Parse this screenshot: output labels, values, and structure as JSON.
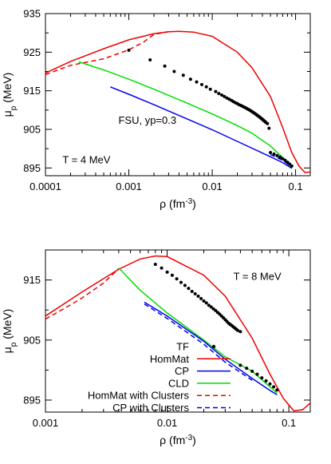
{
  "chart_data": [
    {
      "type": "line",
      "xscale": "log",
      "xlim": [
        0.0001,
        0.15
      ],
      "ylim": [
        893,
        935
      ],
      "xlabel_base": "ρ (fm",
      "xlabel_sup": "-3",
      "xlabel_end": ")",
      "ylabel_base": "μ",
      "ylabel_sub": "p",
      "ylabel_end": " (MeV)",
      "xticks": [
        {
          "v": 0.0001,
          "label": "0.0001"
        },
        {
          "v": 0.001,
          "label": "0.001"
        },
        {
          "v": 0.01,
          "label": "0.01"
        },
        {
          "v": 0.1,
          "label": "0.1"
        }
      ],
      "yticks": [
        {
          "v": 895,
          "label": "895"
        },
        {
          "v": 905,
          "label": "905"
        },
        {
          "v": 915,
          "label": "915"
        },
        {
          "v": 925,
          "label": "925"
        },
        {
          "v": 935,
          "label": "935"
        }
      ],
      "annotations": [
        {
          "text": "FSU, yp=0.3",
          "x": 0.00075,
          "y": 906.5
        },
        {
          "text": "T = 4 MeV",
          "x": 0.00016,
          "y": 896.2
        }
      ],
      "series": [
        {
          "name": "HomMat",
          "color": "#ee0000",
          "dash": "",
          "width": 1.5,
          "points": [
            [
              0.0001,
              919.6
            ],
            [
              0.0002,
              922.6
            ],
            [
              0.0005,
              925.9
            ],
            [
              0.001,
              928.2
            ],
            [
              0.002,
              929.8
            ],
            [
              0.003,
              930.3
            ],
            [
              0.004,
              930.4
            ],
            [
              0.006,
              930.2
            ],
            [
              0.01,
              929.1
            ],
            [
              0.02,
              925.0
            ],
            [
              0.03,
              921.0
            ],
            [
              0.05,
              913.5
            ],
            [
              0.07,
              905.5
            ],
            [
              0.09,
              899.0
            ],
            [
              0.11,
              895.5
            ],
            [
              0.13,
              893.8
            ],
            [
              0.15,
              894.0
            ]
          ]
        },
        {
          "name": "HomMat with Clusters",
          "color": "#ee0000",
          "dash": "6,4",
          "width": 1.5,
          "points": [
            [
              0.0001,
              919.2
            ],
            [
              0.0002,
              921.6
            ],
            [
              0.0005,
              923.3
            ],
            [
              0.001,
              925.6
            ],
            [
              0.0015,
              927.6
            ],
            [
              0.002,
              929.6
            ],
            [
              0.003,
              930.3
            ]
          ]
        },
        {
          "name": "CLD",
          "color": "#00dd00",
          "dash": "",
          "width": 1.5,
          "points": [
            [
              0.00025,
              922.5
            ],
            [
              0.0005,
              920.4
            ],
            [
              0.001,
              918.0
            ],
            [
              0.002,
              915.4
            ],
            [
              0.005,
              911.8
            ],
            [
              0.01,
              909.0
            ],
            [
              0.02,
              906.0
            ],
            [
              0.03,
              904.0
            ],
            [
              0.05,
              900.7
            ],
            [
              0.07,
              897.7
            ],
            [
              0.09,
              895.0
            ]
          ]
        },
        {
          "name": "CP",
          "color": "#0000ee",
          "dash": "",
          "width": 1.5,
          "points": [
            [
              0.0006,
              916.0
            ],
            [
              0.001,
              914.1
            ],
            [
              0.002,
              911.4
            ],
            [
              0.005,
              907.7
            ],
            [
              0.01,
              904.9
            ],
            [
              0.02,
              901.9
            ],
            [
              0.05,
              897.9
            ],
            [
              0.07,
              896.4
            ],
            [
              0.09,
              894.9
            ]
          ]
        },
        {
          "name": "CP with Clusters",
          "color": "#0000ee",
          "dash": "6,4",
          "width": 1.5,
          "points": [
            [
              0.05,
              898.5
            ],
            [
              0.07,
              897.0
            ],
            [
              0.09,
              895.2
            ]
          ]
        }
      ],
      "tf": [
        [
          0.001,
          925.5
        ],
        [
          0.0018,
          923.0
        ],
        [
          0.0027,
          921.4
        ],
        [
          0.0035,
          920.0
        ],
        [
          0.0045,
          919.0
        ],
        [
          0.0055,
          918.0
        ],
        [
          0.0065,
          917.3
        ],
        [
          0.0075,
          916.6
        ],
        [
          0.0085,
          916.0
        ],
        [
          0.0095,
          915.4
        ],
        [
          0.011,
          914.8
        ],
        [
          0.012,
          914.3
        ],
        [
          0.013,
          913.9
        ],
        [
          0.014,
          913.5
        ],
        [
          0.015,
          913.1
        ],
        [
          0.016,
          912.8
        ],
        [
          0.017,
          912.5
        ],
        [
          0.018,
          912.2
        ],
        [
          0.019,
          911.9
        ],
        [
          0.02,
          911.7
        ],
        [
          0.021,
          911.4
        ],
        [
          0.022,
          911.2
        ],
        [
          0.023,
          911.0
        ],
        [
          0.024,
          910.8
        ],
        [
          0.025,
          910.6
        ],
        [
          0.026,
          910.4
        ],
        [
          0.027,
          910.2
        ],
        [
          0.028,
          910.0
        ],
        [
          0.029,
          909.8
        ],
        [
          0.03,
          909.6
        ],
        [
          0.031,
          909.4
        ],
        [
          0.032,
          909.2
        ],
        [
          0.033,
          909.0
        ],
        [
          0.034,
          908.8
        ],
        [
          0.035,
          908.6
        ],
        [
          0.036,
          908.4
        ],
        [
          0.037,
          908.2
        ],
        [
          0.038,
          908.0
        ],
        [
          0.039,
          907.8
        ],
        [
          0.04,
          907.6
        ],
        [
          0.041,
          907.4
        ],
        [
          0.042,
          907.2
        ],
        [
          0.043,
          907.0
        ],
        [
          0.044,
          906.8
        ],
        [
          0.046,
          906.5
        ],
        [
          0.048,
          905.3
        ],
        [
          0.05,
          899.0
        ],
        [
          0.055,
          898.6
        ],
        [
          0.06,
          898.2
        ],
        [
          0.065,
          897.8
        ],
        [
          0.07,
          897.4
        ],
        [
          0.075,
          897.0
        ],
        [
          0.08,
          896.5
        ],
        [
          0.085,
          896.0
        ],
        [
          0.09,
          895.5
        ]
      ]
    },
    {
      "type": "line",
      "xscale": "log",
      "xlim": [
        0.001,
        0.15
      ],
      "ylim": [
        893,
        920
      ],
      "xlabel_base": "ρ (fm",
      "xlabel_sup": "-3",
      "xlabel_end": ")",
      "ylabel_base": "μ",
      "ylabel_sub": "p",
      "ylabel_end": " (MeV)",
      "xticks": [
        {
          "v": 0.001,
          "label": "0.001"
        },
        {
          "v": 0.01,
          "label": "0.01"
        },
        {
          "v": 0.1,
          "label": "0.1"
        }
      ],
      "yticks": [
        {
          "v": 895,
          "label": "895"
        },
        {
          "v": 905,
          "label": "905"
        },
        {
          "v": 915,
          "label": "915"
        }
      ],
      "annotations": [
        {
          "text": "T = 8 MeV",
          "x": 0.035,
          "y": 915
        }
      ],
      "series": [
        {
          "name": "HomMat",
          "color": "#ee0000",
          "dash": "",
          "width": 1.5,
          "points": [
            [
              0.001,
              909.0
            ],
            [
              0.002,
              913.0
            ],
            [
              0.004,
              916.8
            ],
            [
              0.006,
              918.5
            ],
            [
              0.008,
              919.0
            ],
            [
              0.01,
              918.9
            ],
            [
              0.02,
              915.8
            ],
            [
              0.03,
              912.3
            ],
            [
              0.05,
              905.3
            ],
            [
              0.07,
              899.3
            ],
            [
              0.09,
              895.3
            ],
            [
              0.11,
              893.2
            ],
            [
              0.13,
              893.4
            ],
            [
              0.15,
              894.5
            ]
          ]
        },
        {
          "name": "HomMat with Clusters",
          "color": "#ee0000",
          "dash": "6,4",
          "width": 1.5,
          "points": [
            [
              0.001,
              908.5
            ],
            [
              0.0015,
              910.5
            ],
            [
              0.002,
              912.0
            ],
            [
              0.003,
              914.5
            ],
            [
              0.004,
              916.9
            ]
          ]
        },
        {
          "name": "CLD",
          "color": "#00dd00",
          "dash": "",
          "width": 1.5,
          "points": [
            [
              0.004,
              917.0
            ],
            [
              0.006,
              913.3
            ],
            [
              0.01,
              909.5
            ],
            [
              0.02,
              905.0
            ],
            [
              0.03,
              902.2
            ],
            [
              0.05,
              899.8
            ],
            [
              0.07,
              897.2
            ],
            [
              0.08,
              896.2
            ]
          ]
        },
        {
          "name": "CP",
          "color": "#0000ee",
          "dash": "",
          "width": 1.5,
          "points": [
            [
              0.0065,
              911.3
            ],
            [
              0.01,
              909.0
            ],
            [
              0.02,
              904.8
            ],
            [
              0.03,
              901.8
            ],
            [
              0.05,
              898.6
            ],
            [
              0.07,
              896.6
            ],
            [
              0.08,
              895.9
            ]
          ]
        },
        {
          "name": "CP with Clusters",
          "color": "#0000ee",
          "dash": "6,4",
          "width": 1.5,
          "points": [
            [
              0.0065,
              911.0
            ],
            [
              0.01,
              908.6
            ],
            [
              0.02,
              904.3
            ],
            [
              0.03,
              901.3
            ],
            [
              0.05,
              898.3
            ]
          ]
        }
      ],
      "tf": [
        [
          0.008,
          917.6
        ],
        [
          0.009,
          917.0
        ],
        [
          0.01,
          916.3
        ],
        [
          0.011,
          915.8
        ],
        [
          0.012,
          915.2
        ],
        [
          0.013,
          914.6
        ],
        [
          0.014,
          914.1
        ],
        [
          0.015,
          913.6
        ],
        [
          0.016,
          913.1
        ],
        [
          0.017,
          912.7
        ],
        [
          0.018,
          912.3
        ],
        [
          0.019,
          911.9
        ],
        [
          0.02,
          911.5
        ],
        [
          0.021,
          911.2
        ],
        [
          0.022,
          910.8
        ],
        [
          0.023,
          910.5
        ],
        [
          0.024,
          910.2
        ],
        [
          0.025,
          909.9
        ],
        [
          0.026,
          909.6
        ],
        [
          0.027,
          909.3
        ],
        [
          0.028,
          909.0
        ],
        [
          0.029,
          908.7
        ],
        [
          0.03,
          908.4
        ],
        [
          0.031,
          908.1
        ],
        [
          0.032,
          907.8
        ],
        [
          0.033,
          907.6
        ],
        [
          0.034,
          907.4
        ],
        [
          0.035,
          907.2
        ],
        [
          0.036,
          907.0
        ],
        [
          0.037,
          906.8
        ],
        [
          0.038,
          906.6
        ],
        [
          0.04,
          906.4
        ],
        [
          0.04,
          900.8
        ],
        [
          0.045,
          900.3
        ],
        [
          0.05,
          899.8
        ],
        [
          0.055,
          899.3
        ],
        [
          0.06,
          898.7
        ],
        [
          0.065,
          898.2
        ],
        [
          0.07,
          897.7
        ],
        [
          0.075,
          897.2
        ],
        [
          0.08,
          896.7
        ]
      ]
    }
  ],
  "legend": {
    "entries": [
      {
        "label": "TF",
        "kind": "dot",
        "color": "#000000"
      },
      {
        "label": "HomMat",
        "kind": "line",
        "color": "#ee0000",
        "dash": ""
      },
      {
        "label": "CP",
        "kind": "line",
        "color": "#0000ee",
        "dash": ""
      },
      {
        "label": "CLD",
        "kind": "line",
        "color": "#00dd00",
        "dash": ""
      },
      {
        "label": "HomMat with Clusters",
        "kind": "line",
        "color": "#ee0000",
        "dash": "6,4"
      },
      {
        "label": "CP with Clusters",
        "kind": "line",
        "color": "#0000ee",
        "dash": "6,4"
      }
    ]
  }
}
